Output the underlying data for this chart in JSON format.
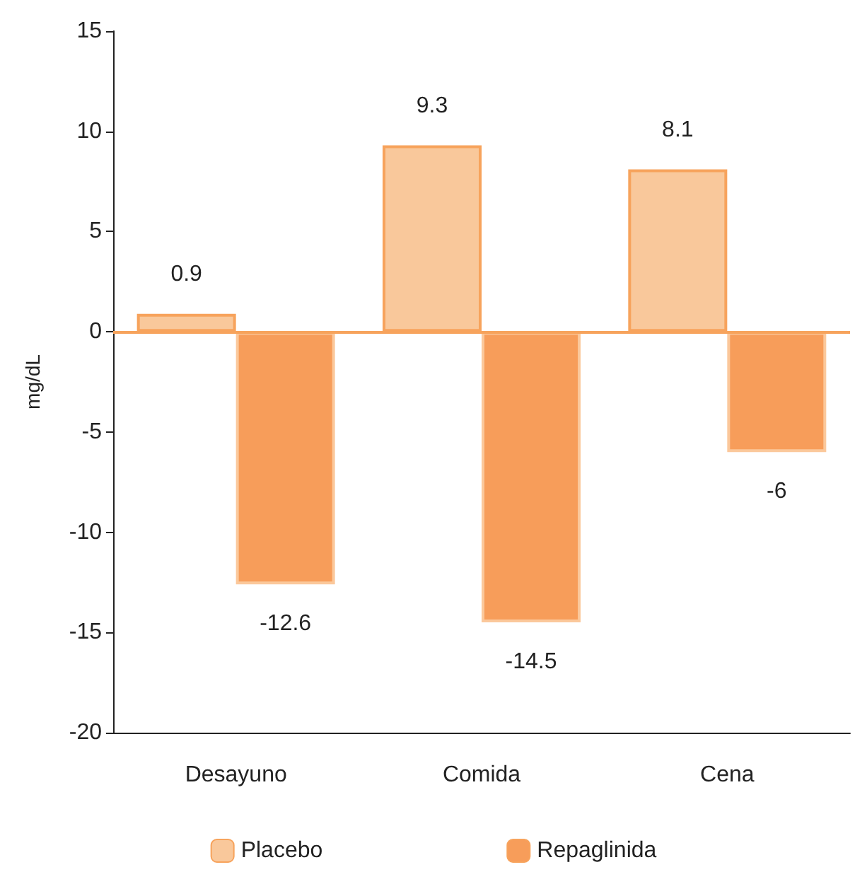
{
  "chart_data": {
    "type": "bar",
    "ylabel": "mg/dL",
    "categories": [
      "Desayuno",
      "Comida",
      "Cena"
    ],
    "series": [
      {
        "name": "Placebo",
        "color": "#f9c89b",
        "values": [
          0.9,
          9.3,
          8.1
        ]
      },
      {
        "name": "Repaglinida",
        "color": "#f79d5a",
        "values": [
          -12.6,
          -14.5,
          -6
        ]
      }
    ],
    "ref_lines": [
      {
        "axis": "y",
        "value": 0,
        "color": "#f7a35c"
      }
    ],
    "ylim": [
      -20,
      15
    ],
    "yticks": [
      -20,
      -15,
      -10,
      -5,
      0,
      5,
      10,
      15
    ],
    "grid": false,
    "legend": "bottom",
    "data_labels": true
  }
}
